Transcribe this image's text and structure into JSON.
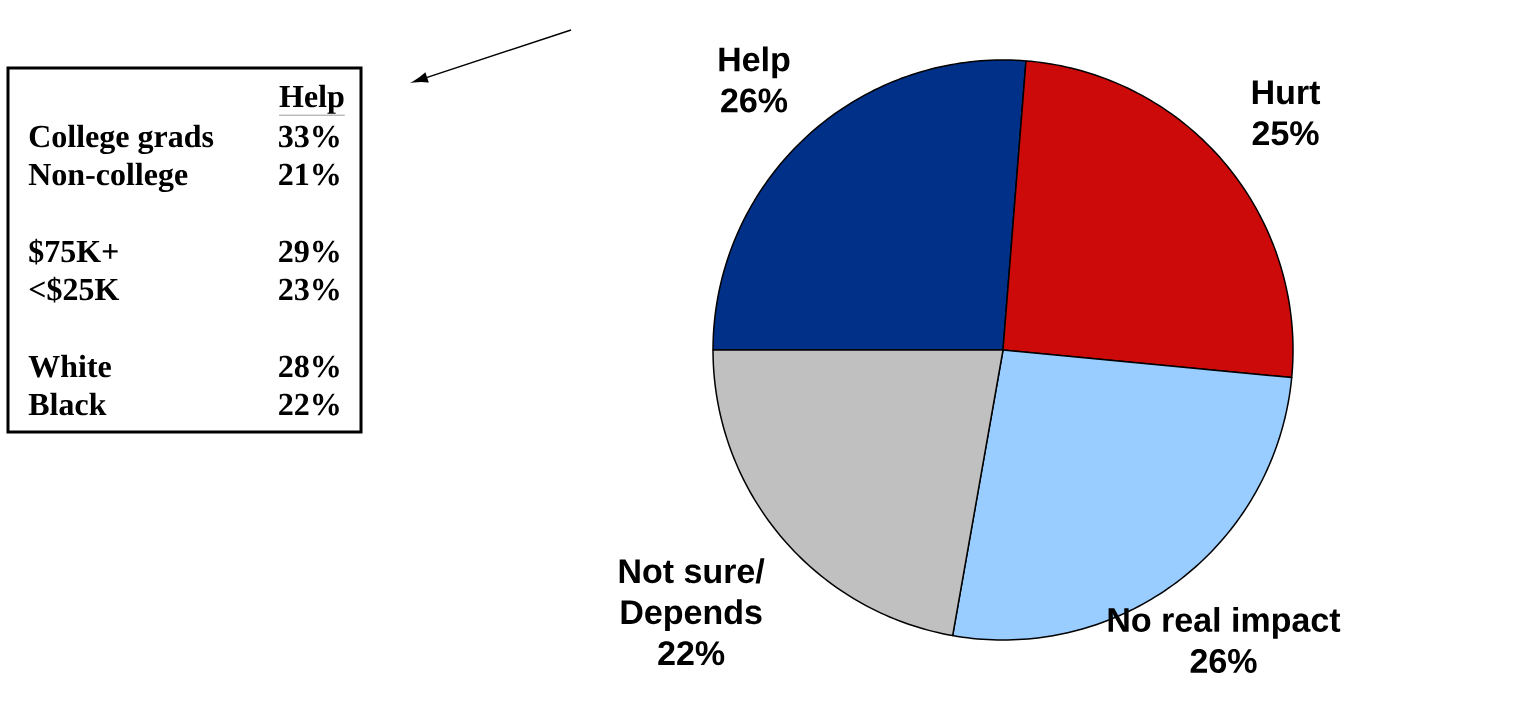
{
  "chart_data": [
    {
      "type": "pie",
      "categories": [
        "Help",
        "Hurt",
        "No real impact",
        "Not sure/ Depends"
      ],
      "values": [
        26,
        25,
        26,
        22
      ],
      "colors": [
        "#003087",
        "#cc0a0a",
        "#99ccff",
        "#c0c0c0"
      ],
      "value_labels": [
        "26%",
        "25%",
        "26%",
        "22%"
      ]
    },
    {
      "type": "other",
      "title": "Help",
      "annotations": [
        "College grads",
        "33%",
        "Non-college",
        "21%",
        "$75K+",
        "29%",
        "<$25K",
        "23%",
        "White",
        "28%",
        "Black",
        "22%"
      ]
    }
  ]
}
